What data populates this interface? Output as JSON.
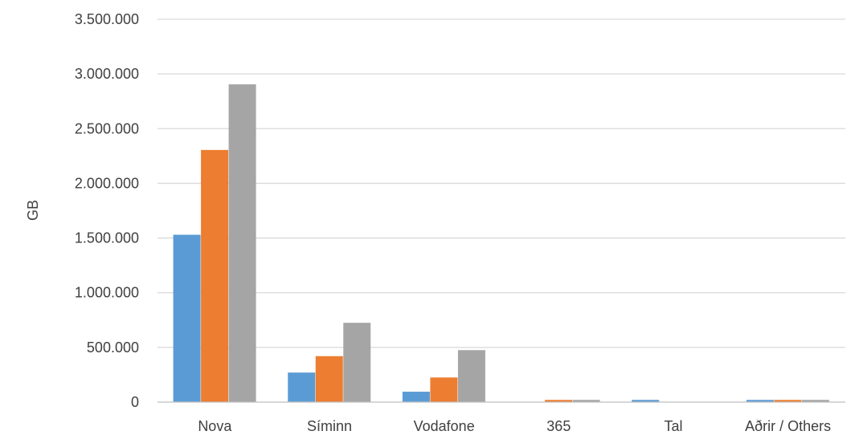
{
  "chart_data": {
    "type": "bar",
    "title": "",
    "xlabel": "",
    "ylabel": "GB",
    "ylim": [
      0,
      3500000
    ],
    "y_ticks": [
      {
        "value": 0,
        "label": "0"
      },
      {
        "value": 500000,
        "label": "500.000"
      },
      {
        "value": 1000000,
        "label": "1.000.000"
      },
      {
        "value": 1500000,
        "label": "1.500.000"
      },
      {
        "value": 2000000,
        "label": "2.000.000"
      },
      {
        "value": 2500000,
        "label": "2.500.000"
      },
      {
        "value": 3000000,
        "label": "3.000.000"
      },
      {
        "value": 3500000,
        "label": "3.500.000"
      }
    ],
    "grid": true,
    "legend": "none",
    "categories": [
      "Nova",
      "Síminn",
      "Vodafone",
      "365",
      "Tal",
      "Aðrir / Others"
    ],
    "series": [
      {
        "color": "#5B9BD5",
        "values": [
          1530000,
          270000,
          95000,
          0,
          20000,
          20000
        ]
      },
      {
        "color": "#ED7D31",
        "values": [
          2305000,
          420000,
          225000,
          20000,
          0,
          20000
        ]
      },
      {
        "color": "#A5A5A5",
        "values": [
          2905000,
          725000,
          475000,
          20000,
          0,
          20000
        ]
      }
    ],
    "gridline_color": "#D9D9D9",
    "axis_color": "#BFBFBF"
  }
}
